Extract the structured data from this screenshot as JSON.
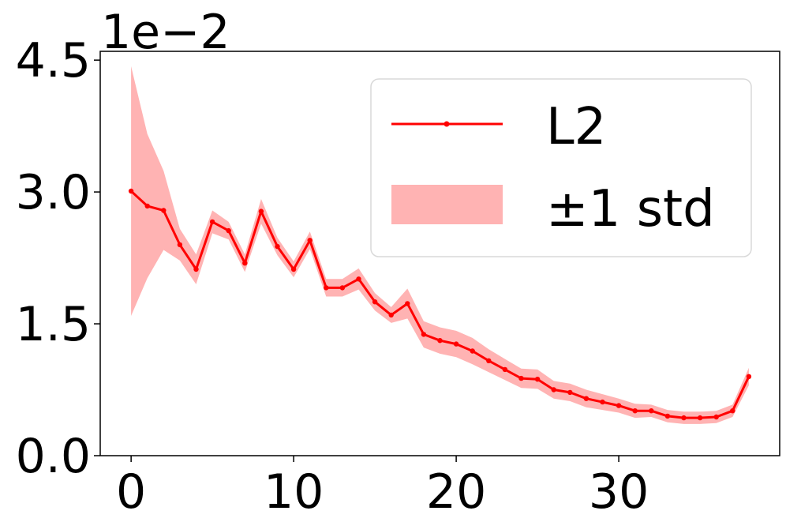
{
  "chart_data": {
    "type": "line",
    "title": "",
    "xlabel": "",
    "ylabel": "",
    "y_offset_label": "1e−2",
    "xlim": [
      -1.9,
      39.9
    ],
    "ylim": [
      0.0,
      4.6
    ],
    "xticks": [
      {
        "value": 0,
        "label": "0"
      },
      {
        "value": 10,
        "label": "10"
      },
      {
        "value": 20,
        "label": "20"
      },
      {
        "value": 30,
        "label": "30"
      }
    ],
    "yticks": [
      {
        "value": 0.0,
        "label": "0.0"
      },
      {
        "value": 1.5,
        "label": "1.5"
      },
      {
        "value": 3.0,
        "label": "3.0"
      },
      {
        "value": 4.5,
        "label": "4.5"
      }
    ],
    "grid": false,
    "legend_position": "top-right",
    "legend": [
      {
        "kind": "line",
        "label": "L2"
      },
      {
        "kind": "band",
        "label": "±1 std"
      }
    ],
    "series": [
      {
        "name": "L2",
        "color": "#ff0000",
        "band_color": "#ffb3b3",
        "x": [
          0,
          1,
          2,
          3,
          4,
          5,
          6,
          7,
          8,
          9,
          10,
          11,
          12,
          13,
          14,
          15,
          16,
          17,
          18,
          19,
          20,
          21,
          22,
          23,
          24,
          25,
          26,
          27,
          28,
          29,
          30,
          31,
          32,
          33,
          34,
          35,
          36,
          37,
          38
        ],
        "y": [
          3.01,
          2.84,
          2.79,
          2.4,
          2.12,
          2.66,
          2.56,
          2.19,
          2.78,
          2.38,
          2.12,
          2.45,
          1.91,
          1.91,
          2.01,
          1.75,
          1.6,
          1.73,
          1.38,
          1.31,
          1.27,
          1.19,
          1.08,
          0.98,
          0.88,
          0.87,
          0.75,
          0.72,
          0.65,
          0.61,
          0.57,
          0.51,
          0.51,
          0.45,
          0.43,
          0.43,
          0.44,
          0.51,
          0.9
        ],
        "std": [
          1.42,
          0.82,
          0.45,
          0.18,
          0.17,
          0.13,
          0.1,
          0.1,
          0.14,
          0.1,
          0.09,
          0.1,
          0.1,
          0.1,
          0.12,
          0.1,
          0.09,
          0.17,
          0.15,
          0.15,
          0.15,
          0.15,
          0.13,
          0.12,
          0.11,
          0.11,
          0.1,
          0.1,
          0.1,
          0.09,
          0.08,
          0.08,
          0.07,
          0.07,
          0.07,
          0.07,
          0.07,
          0.07,
          0.1
        ]
      }
    ]
  }
}
